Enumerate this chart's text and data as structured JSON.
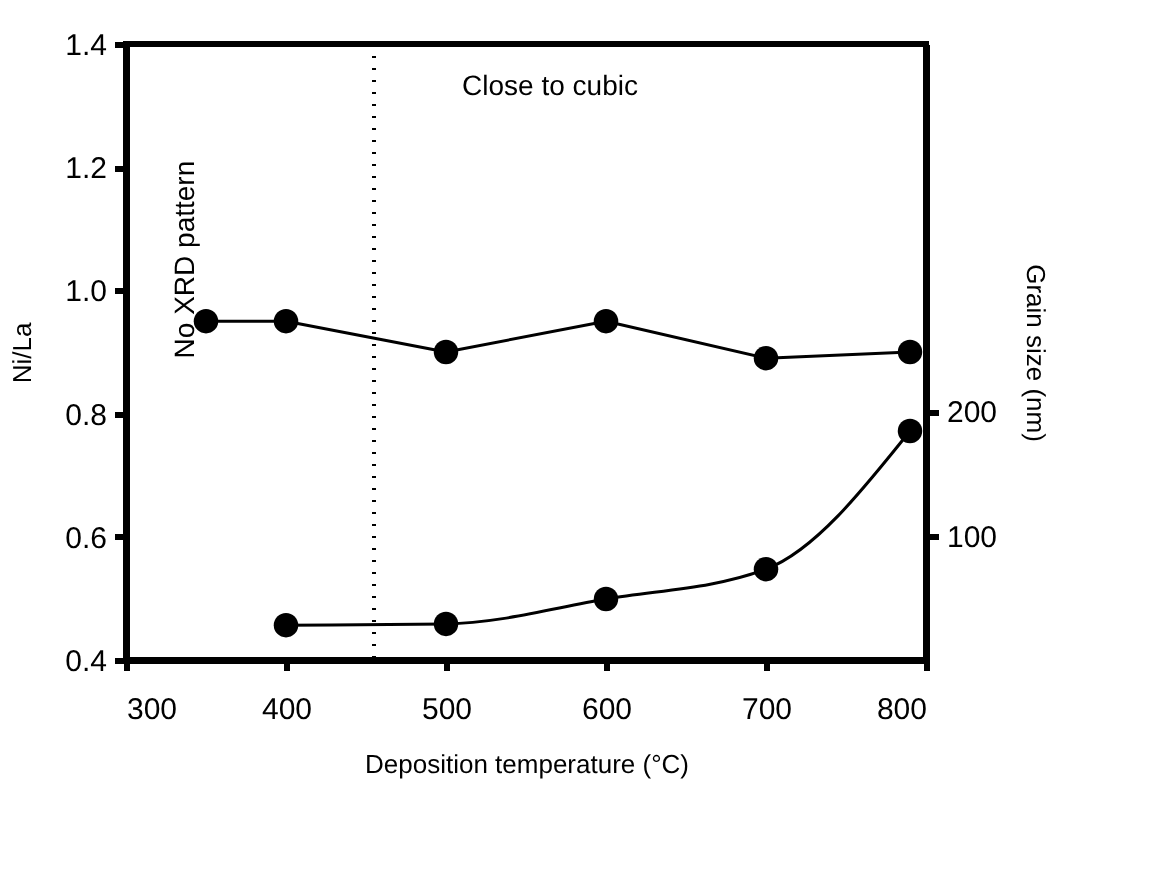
{
  "chart_data": {
    "type": "line",
    "xlabel": "Deposition temperature (°C)",
    "ylabel": "Ni/La",
    "y2label": "Grain size (nm)",
    "x": [
      350,
      400,
      500,
      600,
      700,
      790
    ],
    "series": [
      {
        "color": "#000000",
        "values": [
          0.95,
          0.95,
          0.9,
          0.95,
          0.89,
          0.9
        ]
      },
      {
        "color": "#000000",
        "axis": "y2",
        "x": [
          400,
          500,
          600,
          700,
          790
        ],
        "values": [
          28,
          29,
          49,
          73,
          184
        ]
      }
    ],
    "xlim": [
      300,
      800
    ],
    "xticks": [
      300,
      400,
      500,
      600,
      700,
      800
    ],
    "ylim": [
      0.4,
      1.4
    ],
    "yticks": [
      0.4,
      0.6,
      0.8,
      {
        "value": 1.0,
        "label": "1.0"
      },
      1.2,
      1.4
    ],
    "y2lim": [
      0,
      495
    ],
    "y2ticks": [
      100,
      200
    ],
    "ref_lines": [
      {
        "axis": "x",
        "value": 455,
        "label": null,
        "color": "#000000",
        "line_style": "dotted"
      }
    ],
    "annotations": [
      "Close to cubic",
      "No XRD pattern"
    ],
    "marker": "circle",
    "grid": false
  }
}
